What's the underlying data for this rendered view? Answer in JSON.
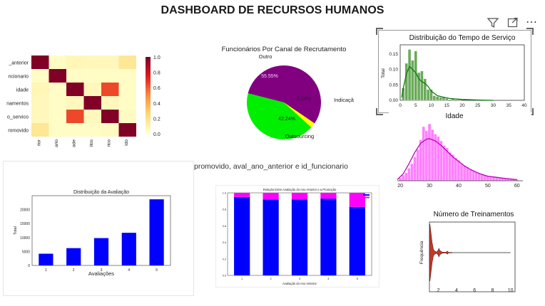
{
  "dashboard": {
    "title": "DASHBOARD DE RECURSOS HUMANOS",
    "toolbar": {
      "filter_icon": "filter-icon",
      "expand_icon": "focus-mode-icon",
      "more_icon": "more-options-icon",
      "more_glyph": "⋯"
    },
    "middle_caption": "promovido, aval_ano_anterior e id_funcionario"
  },
  "chart_data": [
    {
      "id": "heatmap",
      "type": "heatmap",
      "row_labels": [
        "_anterior",
        "ncionario",
        "idade",
        "namentos",
        "o_servico",
        "romovido"
      ],
      "col_labels": [
        "rior",
        "ario",
        "ade",
        "itos",
        "rico",
        "ido"
      ],
      "values": [
        [
          1.0,
          0.02,
          0.06,
          0.05,
          0.05,
          0.16
        ],
        [
          0.02,
          1.0,
          0.02,
          0.02,
          0.02,
          0.02
        ],
        [
          0.06,
          0.02,
          1.0,
          0.05,
          0.65,
          0.02
        ],
        [
          0.05,
          0.02,
          0.05,
          1.0,
          0.05,
          0.02
        ],
        [
          0.05,
          0.02,
          0.65,
          0.05,
          1.0,
          0.03
        ],
        [
          0.16,
          0.02,
          0.02,
          0.02,
          0.03,
          1.0
        ]
      ],
      "colorbar_ticks": [
        "1.0",
        "0.8",
        "0.6",
        "0.4",
        "0.2",
        "0.0"
      ],
      "colormap": [
        "#ffffcc",
        "#fed976",
        "#fd8d3c",
        "#e31a1c",
        "#800026"
      ]
    },
    {
      "id": "pie",
      "type": "pie",
      "title": "Funcionários Por Canal de Recrutamento",
      "slices": [
        {
          "label": "Outro",
          "value": 55.55,
          "pct_text": "55.55%",
          "color": "#800080"
        },
        {
          "label": "Indicação",
          "value": 2.24,
          "pct_text": "2.24%",
          "color": "#ffff00"
        },
        {
          "label": "Outsourcing",
          "value": 42.24,
          "pct_text": "42.24%",
          "color": "#00ee00"
        }
      ]
    },
    {
      "id": "tenure",
      "type": "bar",
      "title": "Distribuição do Tempo de Serviço",
      "ylabel": "Total",
      "x_ticks": [
        "0",
        "5",
        "10",
        "15",
        "20",
        "25",
        "30",
        "35",
        "40"
      ],
      "y_ticks": [
        "0.00",
        "0.05",
        "0.10",
        "0.15"
      ],
      "xlim": [
        0,
        40
      ],
      "ylim": [
        0,
        0.18
      ],
      "bins": [
        {
          "x": 1,
          "v": 0.04
        },
        {
          "x": 2,
          "v": 0.12
        },
        {
          "x": 3,
          "v": 0.165
        },
        {
          "x": 4,
          "v": 0.13
        },
        {
          "x": 5,
          "v": 0.16
        },
        {
          "x": 6,
          "v": 0.09
        },
        {
          "x": 7,
          "v": 0.095
        },
        {
          "x": 8,
          "v": 0.07
        },
        {
          "x": 9,
          "v": 0.035
        },
        {
          "x": 10,
          "v": 0.035
        },
        {
          "x": 11,
          "v": 0.015
        },
        {
          "x": 12,
          "v": 0.012
        },
        {
          "x": 13,
          "v": 0.01
        },
        {
          "x": 14,
          "v": 0.01
        },
        {
          "x": 15,
          "v": 0.006
        },
        {
          "x": 17,
          "v": 0.006
        },
        {
          "x": 19,
          "v": 0.004
        },
        {
          "x": 25,
          "v": 0.002
        }
      ],
      "bar_color": "#6aaa5a",
      "kde_color": "#0a7a0a"
    },
    {
      "id": "age",
      "type": "bar",
      "title": "Idade",
      "x_ticks": [
        "20",
        "30",
        "40",
        "50",
        "60"
      ],
      "xlim": [
        19,
        62
      ],
      "bins": [
        {
          "x": 20,
          "v": 0.05
        },
        {
          "x": 21,
          "v": 0.1
        },
        {
          "x": 22,
          "v": 0.14
        },
        {
          "x": 23,
          "v": 0.22
        },
        {
          "x": 24,
          "v": 0.3
        },
        {
          "x": 25,
          "v": 0.42
        },
        {
          "x": 26,
          "v": 0.55
        },
        {
          "x": 27,
          "v": 0.72
        },
        {
          "x": 28,
          "v": 0.95
        },
        {
          "x": 29,
          "v": 0.88
        },
        {
          "x": 30,
          "v": 1.0
        },
        {
          "x": 31,
          "v": 0.9
        },
        {
          "x": 32,
          "v": 0.82
        },
        {
          "x": 33,
          "v": 0.78
        },
        {
          "x": 34,
          "v": 0.7
        },
        {
          "x": 35,
          "v": 0.62
        },
        {
          "x": 36,
          "v": 0.58
        },
        {
          "x": 37,
          "v": 0.5
        },
        {
          "x": 38,
          "v": 0.46
        },
        {
          "x": 39,
          "v": 0.4
        },
        {
          "x": 40,
          "v": 0.36
        },
        {
          "x": 41,
          "v": 0.3
        },
        {
          "x": 42,
          "v": 0.27
        },
        {
          "x": 43,
          "v": 0.24
        },
        {
          "x": 44,
          "v": 0.2
        },
        {
          "x": 45,
          "v": 0.17
        },
        {
          "x": 46,
          "v": 0.15
        },
        {
          "x": 47,
          "v": 0.13
        },
        {
          "x": 48,
          "v": 0.12
        },
        {
          "x": 49,
          "v": 0.1
        },
        {
          "x": 50,
          "v": 0.09
        },
        {
          "x": 51,
          "v": 0.08
        },
        {
          "x": 52,
          "v": 0.07
        },
        {
          "x": 53,
          "v": 0.06
        },
        {
          "x": 54,
          "v": 0.05
        },
        {
          "x": 55,
          "v": 0.05
        },
        {
          "x": 56,
          "v": 0.04
        },
        {
          "x": 57,
          "v": 0.035
        },
        {
          "x": 58,
          "v": 0.03
        },
        {
          "x": 59,
          "v": 0.025
        },
        {
          "x": 60,
          "v": 0.02
        }
      ],
      "bar_color": "#ff80ff",
      "kde_color": "#c000c0"
    },
    {
      "id": "ratings",
      "type": "bar",
      "title": "Distribuição da Avaliação",
      "xlabel": "Avaliações",
      "ylabel": "Total",
      "categories": [
        "1",
        "2",
        "3",
        "4",
        "5"
      ],
      "values": [
        4200,
        6200,
        9800,
        11700,
        23700
      ],
      "y_ticks": [
        "0",
        "5000",
        "10000",
        "15000",
        "20000"
      ],
      "ylim": [
        0,
        25000
      ],
      "bar_color": "#0000ff"
    },
    {
      "id": "promotion",
      "type": "bar",
      "title": "Relação Entre Avaliação do Ano Anterior e a Promoção",
      "xlabel": "Avaliação do Ano Anterior",
      "categories": [
        "1",
        "2",
        "3",
        "4",
        "5"
      ],
      "y_ticks": [
        "0.0",
        "0.2",
        "0.4",
        "0.6",
        "0.8",
        "1.0"
      ],
      "series": [
        {
          "values": [
            0.95,
            0.92,
            0.92,
            0.93,
            0.83
          ],
          "color": "#0000ff"
        },
        {
          "values": [
            0.05,
            0.08,
            0.08,
            0.07,
            0.17
          ],
          "color": "#ff00ff"
        }
      ]
    },
    {
      "id": "trainings",
      "type": "violin",
      "title": "Número de Treinamentos",
      "ylabel": "Frequência",
      "x_ticks": [
        "2",
        "4",
        "6",
        "8",
        "10"
      ],
      "xlim": [
        1,
        10.5
      ],
      "violin_color": "#c0392b"
    }
  ]
}
